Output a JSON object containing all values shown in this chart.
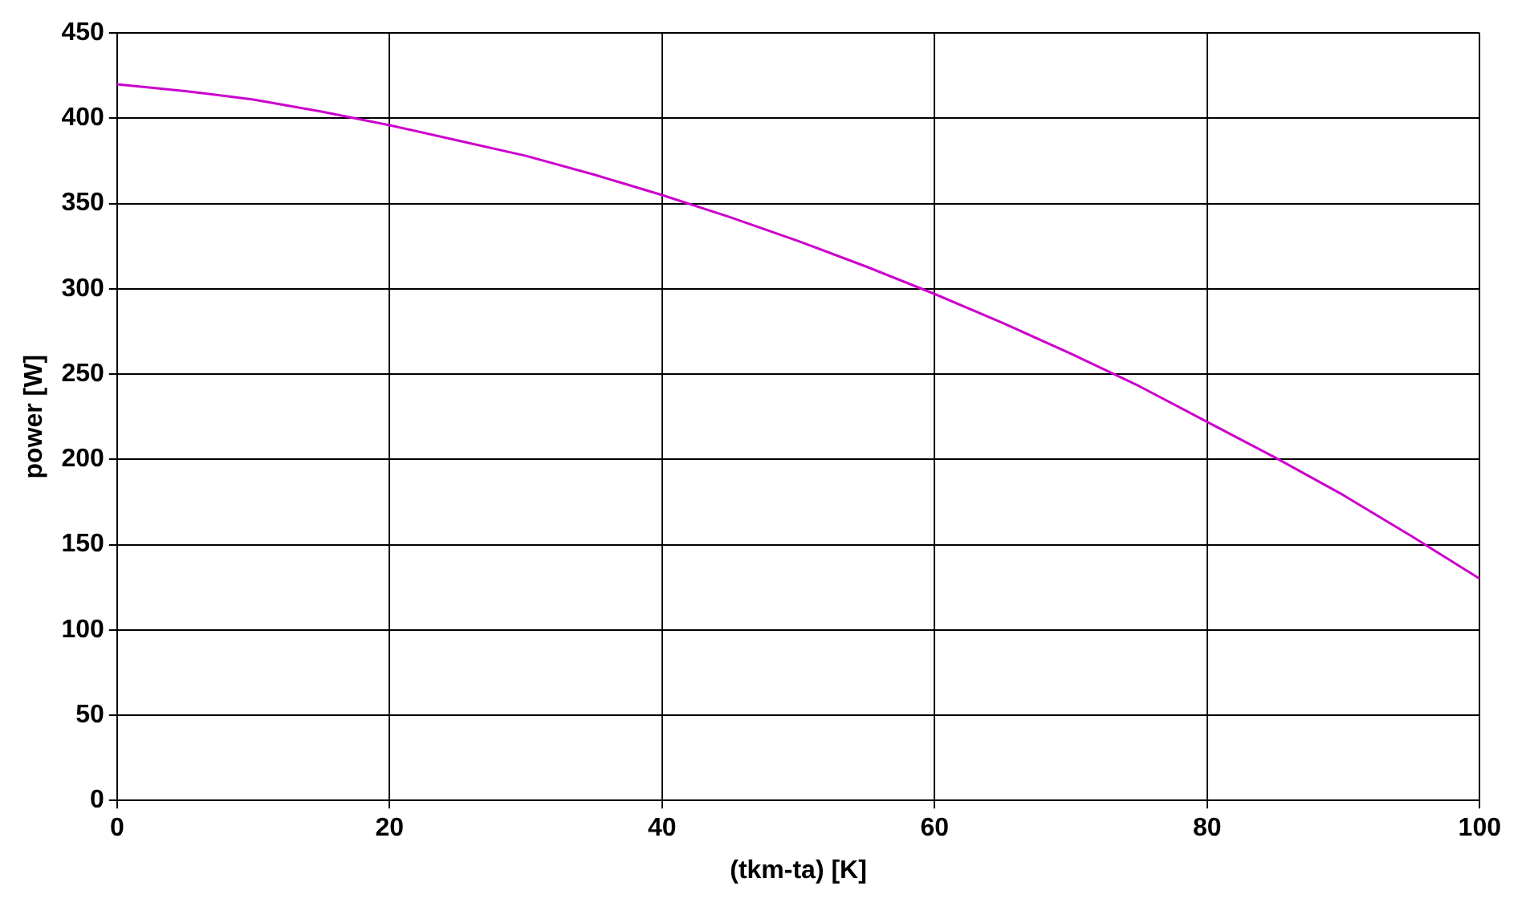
{
  "chart_data": {
    "type": "line",
    "xlabel": "(tkm-ta) [K]",
    "ylabel": "power [W]",
    "x": [
      0,
      5,
      10,
      15,
      20,
      25,
      30,
      35,
      40,
      45,
      50,
      55,
      60,
      65,
      70,
      75,
      80,
      85,
      90,
      95,
      100
    ],
    "series": [
      {
        "color": "#cc00cc",
        "values": [
          420,
          416,
          411,
          404,
          396,
          387,
          378,
          367,
          355,
          342,
          328,
          313,
          297,
          280,
          262,
          243,
          222,
          201,
          179,
          155,
          130
        ]
      }
    ],
    "xlim": [
      0,
      100
    ],
    "xticks": [
      0,
      20,
      40,
      60,
      80,
      100
    ],
    "ylim": [
      0,
      450
    ],
    "yticks": [
      0,
      50,
      100,
      150,
      200,
      250,
      300,
      350,
      400,
      450
    ],
    "grid": true,
    "legend": false,
    "marker": "none",
    "line_style": "solid"
  }
}
